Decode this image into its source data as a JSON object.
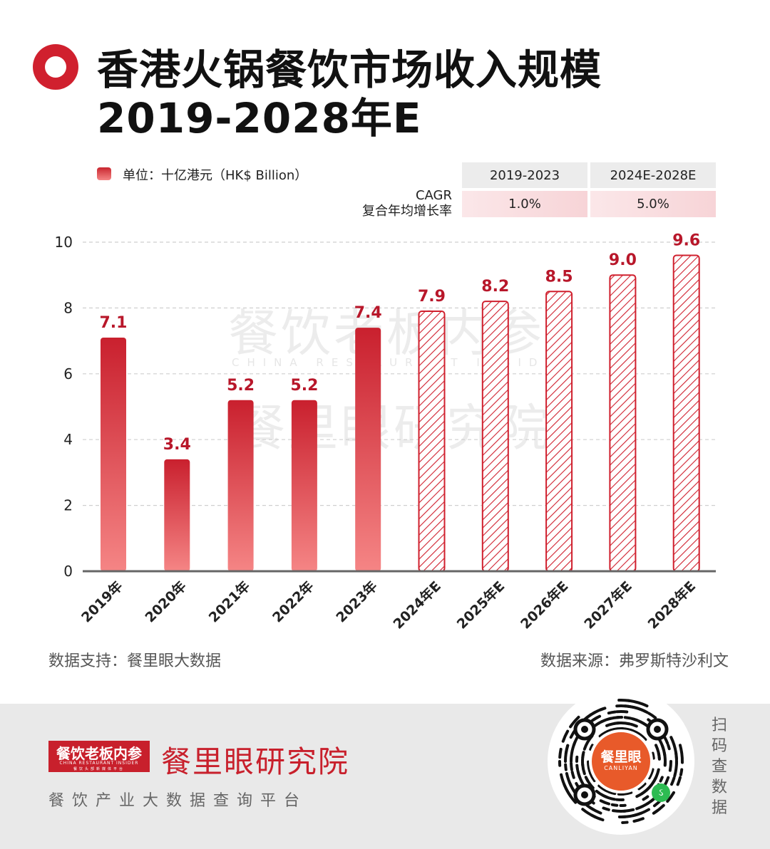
{
  "title": "香港火锅餐饮市场收入规模",
  "subtitle": "2019-2028年E",
  "unit_label": "单位：十亿港元（HK$ Billion）",
  "cagr": {
    "label_line1": "CAGR",
    "label_line2": "复合年均增长率",
    "periods": [
      "2019-2023",
      "2024E-2028E"
    ],
    "values": [
      "1.0%",
      "5.0%"
    ]
  },
  "watermark": {
    "line1": "餐饮老板内参",
    "line2": "CHINA RESTAURANT INSIDER",
    "line3": "餐里眼研究院"
  },
  "footer": {
    "support": "数据支持：餐里眼大数据",
    "source": "数据来源：弗罗斯特沙利文"
  },
  "brand": {
    "box_title": "餐饮老板内参",
    "box_sub": "CHINA RESTAURANT INSIDER",
    "box_sub2": "餐饮头部新媒体平台",
    "name": "餐里眼研究院",
    "tagline": "餐饮产业大数据查询平台",
    "qr_title": "餐里眼",
    "qr_sub": "CANLIYAN",
    "scan_text": "扫码查数据"
  },
  "colors": {
    "accent": "#d0202e",
    "bar_top": "#c9202e",
    "bar_bottom": "#f58585",
    "label": "#b8172a"
  },
  "chart_data": {
    "type": "bar",
    "categories": [
      "2019年",
      "2020年",
      "2021年",
      "2022年",
      "2023年",
      "2024年E",
      "2025年E",
      "2026年E",
      "2027年E",
      "2028年E"
    ],
    "values": [
      7.1,
      3.4,
      5.2,
      5.2,
      7.4,
      7.9,
      8.2,
      8.5,
      9.0,
      9.6
    ],
    "value_labels": [
      "7.1",
      "3.4",
      "5.2",
      "5.2",
      "7.4",
      "7.9",
      "8.2",
      "8.5",
      "9.0",
      "9.6"
    ],
    "forecast": [
      false,
      false,
      false,
      false,
      false,
      true,
      true,
      true,
      true,
      true
    ],
    "ylim": [
      0,
      10
    ],
    "yticks": [
      0,
      2,
      4,
      6,
      8,
      10
    ],
    "grid": true,
    "xlabel": "",
    "ylabel": ""
  }
}
